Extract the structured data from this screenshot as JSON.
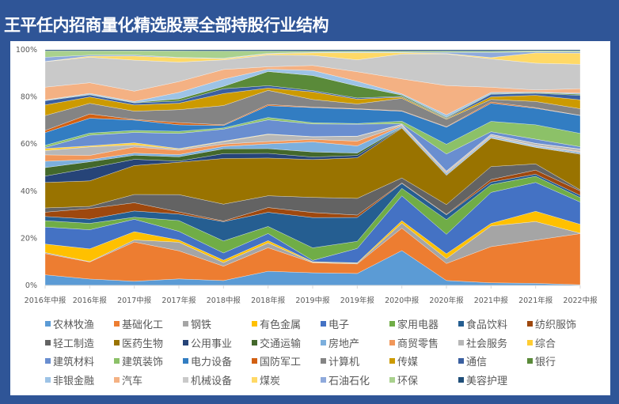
{
  "title": "王平任内招商量化精选股票全部持股行业结构",
  "chart_data": {
    "type": "area",
    "stacked": "percent",
    "title": "王平任内招商量化精选股票全部持股行业结构",
    "categories": [
      "2016年中报",
      "2016年报",
      "2017中报",
      "2017年报",
      "2018中报",
      "2018年报",
      "2019中报",
      "2019年报",
      "2020中报",
      "2020年报",
      "2021中报",
      "2021年报",
      "2022中报"
    ],
    "yticks": [
      "0%",
      "20%",
      "40%",
      "60%",
      "80%",
      "100%"
    ],
    "ylim": [
      0,
      100
    ],
    "grid": false,
    "legend_position": "bottom",
    "series": [
      {
        "name": "农林牧渔",
        "color": "#5B9BD5",
        "values": [
          5,
          3,
          2,
          3,
          2,
          6,
          5,
          5,
          14,
          2,
          1,
          1,
          0.3
        ]
      },
      {
        "name": "基础化工",
        "color": "#ED7D31",
        "values": [
          10,
          8,
          19,
          13,
          6,
          10,
          4,
          4,
          9,
          7,
          14,
          21,
          23
        ]
      },
      {
        "name": "钢铁",
        "color": "#A5A5A5",
        "values": [
          0.5,
          0.2,
          1,
          4,
          1.5,
          2,
          0.2,
          0.3,
          2,
          2,
          8,
          9,
          0.2
        ]
      },
      {
        "name": "有色金属",
        "color": "#FFC000",
        "values": [
          4,
          6,
          4,
          1,
          1,
          1,
          0.2,
          0.2,
          1,
          2,
          1,
          5,
          4
        ]
      },
      {
        "name": "电子",
        "color": "#4472C4",
        "values": [
          8,
          9,
          6,
          4,
          3,
          3,
          0.5,
          6,
          10,
          8,
          12,
          14,
          10
        ]
      },
      {
        "name": "家用电器",
        "color": "#70AD47",
        "values": [
          3,
          3,
          1,
          5,
          5,
          3,
          5,
          3,
          3,
          6,
          3,
          3,
          2
        ]
      },
      {
        "name": "食品饮料",
        "color": "#255E91",
        "values": [
          2,
          2,
          3,
          3,
          8,
          6,
          12,
          10,
          2,
          2,
          1,
          1,
          1
        ]
      },
      {
        "name": "纺织服饰",
        "color": "#9E480E",
        "values": [
          2,
          5,
          4,
          1,
          0.3,
          2,
          2,
          1,
          0.2,
          0.2,
          1,
          2,
          2
        ]
      },
      {
        "name": "轻工制造",
        "color": "#636363",
        "values": [
          2,
          1,
          4,
          8,
          7,
          5,
          6,
          7,
          2,
          4,
          5,
          3,
          0.5
        ]
      },
      {
        "name": "医药生物",
        "color": "#997300",
        "values": [
          12,
          12,
          14,
          15,
          19,
          16,
          15,
          17,
          20,
          12,
          11,
          8,
          16
        ]
      },
      {
        "name": "公用事业",
        "color": "#264478",
        "values": [
          3,
          6,
          3,
          0.5,
          2,
          2,
          1,
          1,
          0.2,
          0.2,
          0.1,
          0.1,
          0.3
        ]
      },
      {
        "name": "交通运输",
        "color": "#43682B",
        "values": [
          4,
          3,
          2,
          2,
          2,
          2,
          2,
          1,
          0.2,
          0.2,
          0.1,
          0.1,
          0.2
        ]
      },
      {
        "name": "房地产",
        "color": "#7CAFDD",
        "values": [
          3,
          1,
          1,
          1,
          1,
          2,
          4,
          3,
          0.5,
          0.5,
          0.5,
          0.5,
          0.5
        ]
      },
      {
        "name": "商贸零售",
        "color": "#F1975A",
        "values": [
          3,
          2,
          3,
          2,
          1,
          1,
          1,
          2,
          0.3,
          0.3,
          0.2,
          0.2,
          0.3
        ]
      },
      {
        "name": "社会服务",
        "color": "#B7B7B7",
        "values": [
          2,
          4,
          1,
          0.5,
          1,
          3,
          1,
          2,
          0.3,
          0.5,
          0.5,
          1,
          1
        ]
      },
      {
        "name": "综合",
        "color": "#FFCD33",
        "values": [
          1,
          0.5,
          1,
          0.3,
          0.2,
          0.2,
          0.1,
          0.1,
          0.1,
          0.1,
          0.1,
          0.1,
          0.1
        ]
      },
      {
        "name": "建筑材料",
        "color": "#698ED0",
        "values": [
          0.5,
          5,
          5,
          7,
          5,
          6,
          5,
          5,
          0.2,
          7,
          1,
          2,
          1
        ]
      },
      {
        "name": "建筑装饰",
        "color": "#8CC168",
        "values": [
          1,
          1,
          1,
          1,
          0.5,
          1,
          0.5,
          0.3,
          1,
          4,
          4,
          7,
          6
        ]
      },
      {
        "name": "电力设备",
        "color": "#327DC2",
        "values": [
          6,
          7,
          5,
          3,
          1,
          5,
          6,
          6,
          4,
          7,
          7,
          8,
          8
        ]
      },
      {
        "name": "国防军工",
        "color": "#D26012",
        "values": [
          1,
          2,
          0.3,
          1,
          0.3,
          0.5,
          0.2,
          0.2,
          0.2,
          0.2,
          0.5,
          0.3,
          0.1
        ]
      },
      {
        "name": "计算机",
        "color": "#848484",
        "values": [
          7,
          5,
          4,
          6,
          8,
          6,
          3,
          2,
          5,
          3,
          1,
          3,
          3
        ]
      },
      {
        "name": "传媒",
        "color": "#CC9A00",
        "values": [
          5,
          3,
          3,
          3,
          5,
          1,
          3,
          2,
          0.5,
          0.3,
          1,
          3,
          4
        ]
      },
      {
        "name": "通信",
        "color": "#3A5FA0",
        "values": [
          2,
          1,
          1,
          1,
          2,
          1,
          0.5,
          0.5,
          0.3,
          0.3,
          1,
          1,
          2
        ]
      },
      {
        "name": "银行",
        "color": "#5A8A39",
        "values": [
          0.2,
          0.2,
          0.2,
          1,
          1,
          6,
          6,
          5,
          0.5,
          0.3,
          0.2,
          0.3,
          0.5
        ]
      },
      {
        "name": "非银金融",
        "color": "#9DC3E6",
        "values": [
          0.2,
          0.5,
          0.5,
          3,
          3,
          1,
          2,
          2,
          0.5,
          1,
          0.5,
          0.3,
          0.5
        ]
      },
      {
        "name": "汽车",
        "color": "#F4B183",
        "values": [
          6,
          5,
          5,
          5,
          4,
          1,
          2,
          4,
          6,
          12,
          2,
          1,
          2
        ]
      },
      {
        "name": "机械设备",
        "color": "#C9C9C9",
        "values": [
          12,
          12,
          15,
          9,
          4,
          5,
          4,
          5,
          10,
          13,
          11,
          13,
          11
        ]
      },
      {
        "name": "煤炭",
        "color": "#FFD966",
        "values": [
          0.1,
          0.5,
          2,
          2,
          0.5,
          0.5,
          1,
          3,
          0.5,
          0.2,
          0.5,
          5,
          5
        ]
      },
      {
        "name": "石油石化",
        "color": "#8FAADC",
        "values": [
          2,
          0.5,
          0.5,
          0.2,
          0.2,
          0.2,
          0.2,
          0.2,
          0.2,
          0.5,
          2,
          0.5,
          0.5
        ]
      },
      {
        "name": "环保",
        "color": "#A9D18E",
        "values": [
          3,
          2,
          2,
          3,
          3,
          1,
          0.5,
          0.5,
          0.5,
          0.5,
          0.5,
          0.5,
          0.5
        ]
      },
      {
        "name": "美容护理",
        "color": "#1F4E79",
        "values": [
          0.5,
          0.5,
          0.5,
          0.5,
          0.5,
          0.5,
          0.5,
          0.5,
          0.5,
          0.5,
          0.5,
          0.5,
          0.5
        ]
      }
    ]
  }
}
